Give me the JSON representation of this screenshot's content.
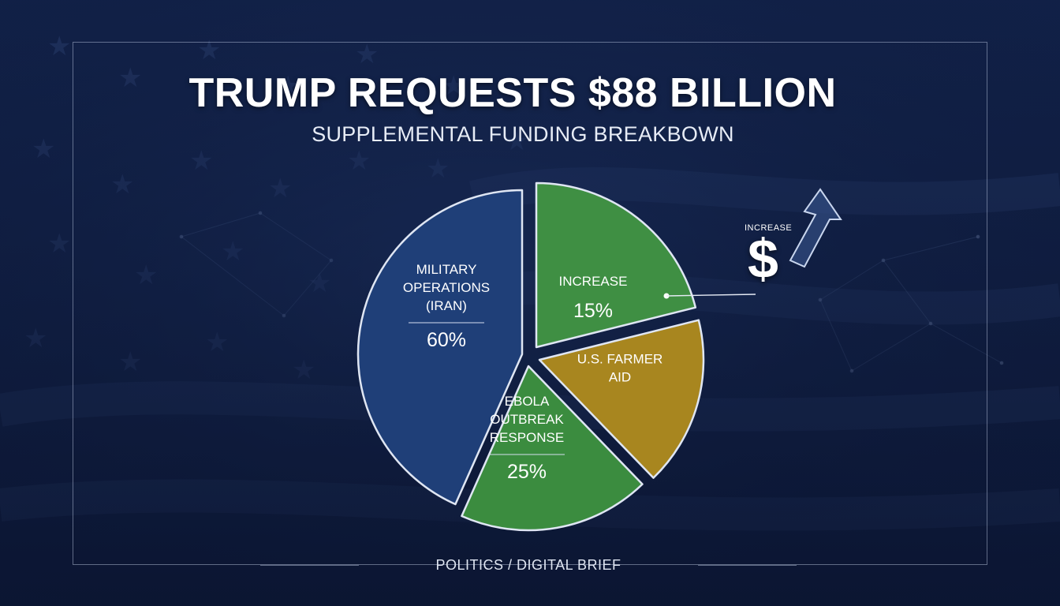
{
  "header": {
    "title": "TRUMP REQUESTS $88 BILLION",
    "subtitle": "SUPPLEMENTAL FUNDING BREAKBOWN"
  },
  "footer": {
    "text": "POLITICS / DIGITAL BRIEF"
  },
  "callout": {
    "label": "INCREASE",
    "symbol": "$"
  },
  "colors": {
    "military": "#1f3f78",
    "increase": "#3f8f43",
    "farmer": "#a8861f",
    "ebola": "#3b8c3f",
    "background": "#0e1c3f"
  },
  "chart_data": {
    "type": "pie",
    "title": "SUPPLEMENTAL FUNDING BREAKBOWN",
    "slices": [
      {
        "lines": [
          "MILITARY",
          "OPERATIONS",
          "(IRAN)"
        ],
        "value_label": "60%",
        "color": "#1f3f78"
      },
      {
        "lines": [
          "INCREASE"
        ],
        "value_label": "15%",
        "color": "#3f8f43"
      },
      {
        "lines": [
          "U.S. FARMER",
          "AID"
        ],
        "value_label": "",
        "color": "#a8861f"
      },
      {
        "lines": [
          "EBOLA",
          "OUTBREAK",
          "RESPONSE"
        ],
        "value_label": "25%",
        "color": "#3b8c3f"
      }
    ]
  }
}
